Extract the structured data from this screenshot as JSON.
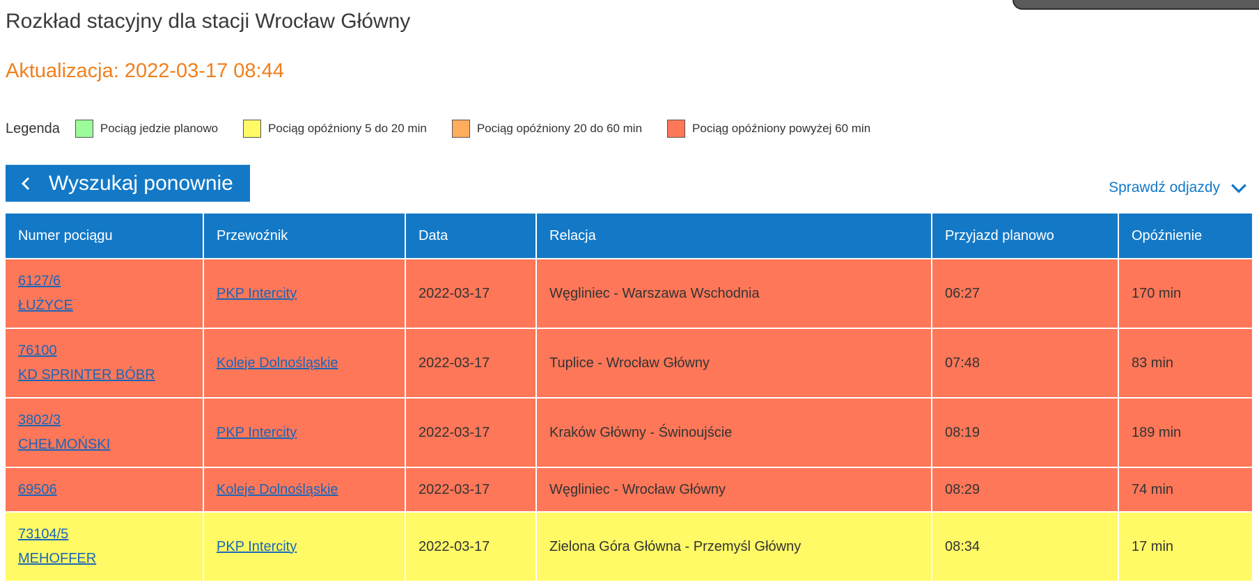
{
  "page": {
    "title": "Rozkład stacyjny dla stacji Wrocław Główny",
    "update": "Aktualizacja: 2022-03-17 08:44"
  },
  "legend": {
    "title": "Legenda",
    "items": [
      {
        "label": "Pociąg jedzie planowo",
        "color": "#9dfb9b"
      },
      {
        "label": "Pociąg opóźniony 5 do 20 min",
        "color": "#fffa66"
      },
      {
        "label": "Pociąg opóźniony 20 do 60 min",
        "color": "#ffad5c"
      },
      {
        "label": "Pociąg opóźniony powyżej 60 min",
        "color": "#fe7758"
      }
    ]
  },
  "search_again": {
    "label": "Wyszukaj ponownie",
    "icon": "chevron-left-icon"
  },
  "check_departures": {
    "label": "Sprawdź odjazdy",
    "icon": "chevron-down-icon"
  },
  "table": {
    "headers": [
      "Numer pociągu",
      "Przewoźnik",
      "Data",
      "Relacja",
      "Przyjazd planowo",
      "Opóźnienie"
    ],
    "rows": [
      {
        "number": "6127/6",
        "name": "ŁUŻYCE",
        "carrier": "PKP Intercity",
        "date": "2022-03-17",
        "route": "Węgliniec - Warszawa Wschodnia",
        "planned": "06:27",
        "delay": "170 min"
      },
      {
        "number": "76100",
        "name": "KD SPRINTER BÓBR",
        "carrier": "Koleje Dolnośląskie",
        "date": "2022-03-17",
        "route": "Tuplice - Wrocław Główny",
        "planned": "07:48",
        "delay": "83 min"
      },
      {
        "number": "3802/3",
        "name": "CHEŁMOŃSKI",
        "carrier": "PKP Intercity",
        "date": "2022-03-17",
        "route": "Kraków Główny - Świnoujście",
        "planned": "08:19",
        "delay": "189 min"
      },
      {
        "number": "69506",
        "name": "",
        "carrier": "Koleje Dolnośląskie",
        "date": "2022-03-17",
        "route": "Węgliniec - Wrocław Główny",
        "planned": "08:29",
        "delay": "74 min"
      },
      {
        "number": "73104/5",
        "name": "MEHOFFER",
        "carrier": "PKP Intercity",
        "date": "2022-03-17",
        "route": "Zielona Góra Główna - Przemyśl Główny",
        "planned": "08:34",
        "delay": "17 min"
      }
    ]
  }
}
